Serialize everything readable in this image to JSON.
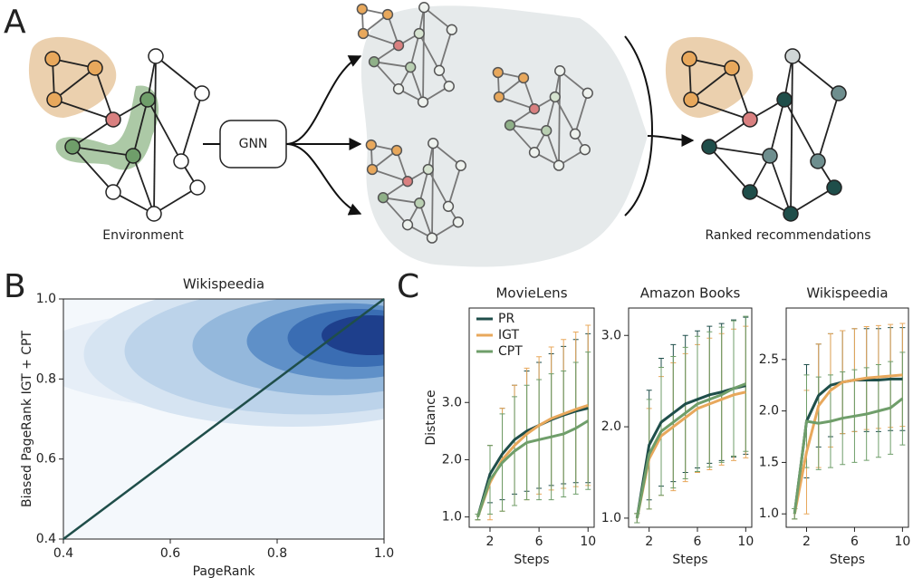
{
  "panel_labels": [
    "A",
    "B",
    "C"
  ],
  "diagram": {
    "model_label": "GNN",
    "input_label": "Environment",
    "output_label": "Ranked recommendations"
  },
  "chart_data": [
    {
      "type": "line",
      "title": "Wikispeedia",
      "x_label": "PageRank",
      "y_label": "Biased PageRank  IGT + CPT",
      "x": [
        0.4,
        1.0
      ],
      "values": [
        0.4,
        1.0
      ],
      "color": "#1f4e4a",
      "xlim": [
        0.4,
        1.0
      ],
      "ylim": [
        0.4,
        1.0
      ],
      "xticks": [
        0.4,
        0.6,
        0.8,
        {
          "value": 1,
          "label": "1.0"
        }
      ],
      "yticks": [
        0.4,
        0.6,
        0.8,
        {
          "value": 1,
          "label": "1.0"
        }
      ]
    },
    {
      "type": "errorline",
      "title": "MovieLens",
      "x_label": "Steps",
      "y_label": "Distance",
      "legend": "upper left",
      "x": [
        1,
        2,
        3,
        4,
        5,
        6,
        7,
        8,
        9,
        10
      ],
      "xlim": [
        0.3,
        10.5
      ],
      "ylim": [
        0.82,
        4.65
      ],
      "xticks": [
        2,
        6,
        10
      ],
      "yticks": [
        {
          "value": 1,
          "label": "1.0"
        },
        {
          "value": 2,
          "label": "2.0"
        },
        {
          "value": 3,
          "label": "3.0"
        }
      ],
      "series": [
        {
          "name": "PR",
          "color": "#1f4e4a",
          "values": [
            1.0,
            1.75,
            2.1,
            2.35,
            2.5,
            2.6,
            2.7,
            2.78,
            2.85,
            2.9
          ],
          "errors": [
            0.05,
            0.5,
            0.8,
            0.95,
            1.05,
            1.1,
            1.15,
            1.2,
            1.25,
            1.3
          ]
        },
        {
          "name": "IGT",
          "color": "#e8a85c",
          "values": [
            1.0,
            1.6,
            2.0,
            2.25,
            2.45,
            2.6,
            2.72,
            2.8,
            2.88,
            2.95
          ],
          "errors": [
            0.05,
            0.65,
            0.9,
            1.05,
            1.15,
            1.2,
            1.25,
            1.3,
            1.35,
            1.4
          ]
        },
        {
          "name": "CPT",
          "color": "#6f9e6a",
          "values": [
            1.0,
            1.65,
            1.95,
            2.15,
            2.3,
            2.35,
            2.4,
            2.45,
            2.55,
            2.68
          ],
          "errors": [
            0.05,
            0.6,
            0.85,
            0.95,
            1.0,
            1.05,
            1.1,
            1.1,
            1.15,
            1.2
          ]
        }
      ]
    },
    {
      "type": "errorline",
      "title": "Amazon Books",
      "x_label": "Steps",
      "x": [
        1,
        2,
        3,
        4,
        5,
        6,
        7,
        8,
        9,
        10
      ],
      "xlim": [
        0.3,
        10.5
      ],
      "ylim": [
        0.9,
        3.3
      ],
      "xticks": [
        2,
        6,
        10
      ],
      "yticks": [
        {
          "value": 1,
          "label": "1.0"
        },
        {
          "value": 2,
          "label": "2.0"
        },
        {
          "value": 3,
          "label": "3.0"
        }
      ],
      "series": [
        {
          "name": "PR",
          "color": "#1f4e4a",
          "values": [
            1.0,
            1.8,
            2.05,
            2.15,
            2.25,
            2.3,
            2.35,
            2.38,
            2.42,
            2.45
          ],
          "errors": [
            0.05,
            0.6,
            0.7,
            0.75,
            0.75,
            0.75,
            0.75,
            0.75,
            0.75,
            0.75
          ]
        },
        {
          "name": "IGT",
          "color": "#e8a85c",
          "values": [
            1.0,
            1.65,
            1.9,
            2.0,
            2.1,
            2.2,
            2.25,
            2.3,
            2.35,
            2.38
          ],
          "errors": [
            0.05,
            0.55,
            0.65,
            0.7,
            0.7,
            0.7,
            0.72,
            0.72,
            0.72,
            0.72
          ]
        },
        {
          "name": "CPT",
          "color": "#6f9e6a",
          "values": [
            1.0,
            1.7,
            1.95,
            2.05,
            2.15,
            2.25,
            2.3,
            2.35,
            2.42,
            2.47
          ],
          "errors": [
            0.05,
            0.6,
            0.7,
            0.72,
            0.72,
            0.74,
            0.74,
            0.74,
            0.74,
            0.74
          ]
        }
      ]
    },
    {
      "type": "errorline",
      "title": "Wikispeedia",
      "x_label": "Steps",
      "x": [
        1,
        2,
        3,
        4,
        5,
        6,
        7,
        8,
        9,
        10
      ],
      "xlim": [
        0.3,
        10.5
      ],
      "ylim": [
        0.87,
        3.0
      ],
      "xticks": [
        2,
        6,
        10
      ],
      "yticks": [
        {
          "value": 1,
          "label": "1.0"
        },
        1.5,
        {
          "value": 2,
          "label": "2.0"
        },
        2.5
      ],
      "series": [
        {
          "name": "PR",
          "color": "#1f4e4a",
          "values": [
            1.0,
            1.9,
            2.15,
            2.25,
            2.28,
            2.3,
            2.3,
            2.3,
            2.31,
            2.31
          ],
          "errors": [
            0.05,
            0.55,
            0.5,
            0.5,
            0.5,
            0.5,
            0.5,
            0.5,
            0.5,
            0.5
          ]
        },
        {
          "name": "IGT",
          "color": "#e8a85c",
          "values": [
            1.0,
            1.6,
            2.05,
            2.2,
            2.28,
            2.3,
            2.32,
            2.33,
            2.34,
            2.35
          ],
          "errors": [
            0.05,
            0.6,
            0.6,
            0.55,
            0.5,
            0.5,
            0.5,
            0.5,
            0.5,
            0.5
          ]
        },
        {
          "name": "CPT",
          "color": "#6f9e6a",
          "values": [
            1.0,
            1.9,
            1.88,
            1.9,
            1.93,
            1.95,
            1.97,
            2.0,
            2.03,
            2.12
          ],
          "errors": [
            0.05,
            0.45,
            0.45,
            0.45,
            0.45,
            0.45,
            0.45,
            0.45,
            0.45,
            0.45
          ]
        }
      ]
    }
  ]
}
